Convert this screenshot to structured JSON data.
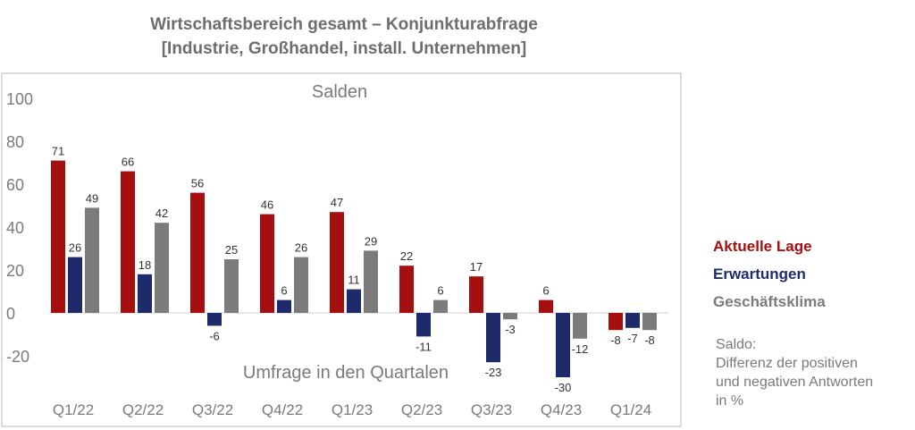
{
  "title": {
    "line1": "Wirtschaftsbereich gesamt – Konjunkturabfrage",
    "line2": "[Industrie, Großhandel, install. Unternehmen]"
  },
  "legend": [
    {
      "name": "Aktuelle Lage",
      "color": "#a50f0f"
    },
    {
      "name": "Erwartungen",
      "color": "#1f2a6b"
    },
    {
      "name": "Geschäftsklima",
      "color": "#7b7b7b"
    }
  ],
  "note": {
    "line1": "Saldo:",
    "line2": "Differenz der positiven",
    "line3": "und negativen Antworten",
    "line4": "in %"
  },
  "chart_data": {
    "type": "bar",
    "ylabel": "Salden",
    "xlabel": "Umfrage in den Quartalen",
    "categories": [
      "Q1/22",
      "Q2/22",
      "Q3/22",
      "Q4/22",
      "Q1/23",
      "Q2/23",
      "Q3/23",
      "Q4/23",
      "Q1/24"
    ],
    "series": [
      {
        "name": "Aktuelle Lage",
        "color": "#a50f0f",
        "values": [
          71,
          66,
          56,
          46,
          47,
          22,
          17,
          6,
          -8
        ]
      },
      {
        "name": "Erwartungen",
        "color": "#1f2a6b",
        "values": [
          26,
          18,
          -6,
          6,
          11,
          -11,
          -23,
          -30,
          -7
        ]
      },
      {
        "name": "Geschäftsklima",
        "color": "#7b7b7b",
        "values": [
          49,
          42,
          25,
          26,
          29,
          6,
          -3,
          -12,
          -8
        ]
      }
    ],
    "yticks": [
      100,
      80,
      60,
      40,
      20,
      0,
      -20
    ],
    "ylim": [
      -35,
      110
    ],
    "grid": false,
    "legend_position": "right"
  }
}
